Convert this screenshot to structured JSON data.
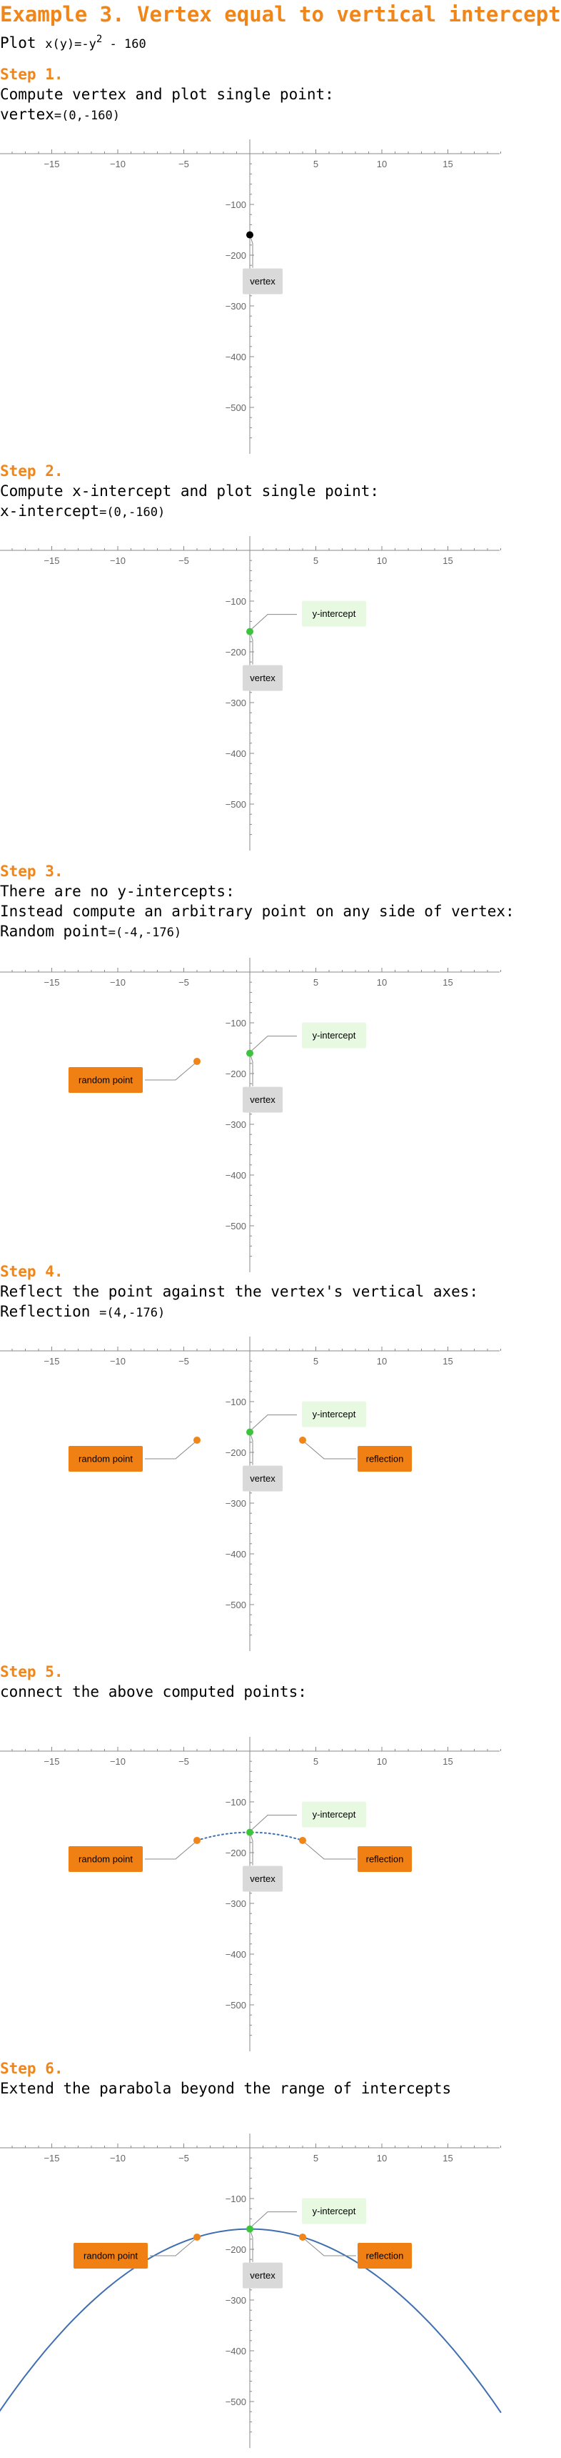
{
  "title": "Example 3. Vertex equal to vertical intercept",
  "plot_prefix": "Plot ",
  "plot_func": "x(y)=-y",
  "plot_exp": "2",
  "plot_rest": " - 160",
  "steps": [
    {
      "heading": "Step 1.",
      "lines": [
        {
          "text": "Compute vertex and plot single point:"
        },
        {
          "text": "vertex",
          "value": "=(0,-160)"
        }
      ]
    },
    {
      "heading": "Step 2.",
      "lines": [
        {
          "text": "Compute x-intercept and plot single point:"
        },
        {
          "text": "x-intercept",
          "value": "=(0,-160)"
        }
      ]
    },
    {
      "heading": "Step 3.",
      "lines": [
        {
          "text": "There are no y-intercepts:"
        },
        {
          "text": "Instead compute an arbitrary point on any side of vertex:"
        },
        {
          "text": "Random point",
          "value": "=(-4,-176)"
        }
      ]
    },
    {
      "heading": "Step 4.",
      "lines": [
        {
          "text": "Reflect the point against the vertex's vertical axes:"
        },
        {
          "text": "Reflection ",
          "value": "=(4,-176)"
        }
      ]
    },
    {
      "heading": "Step 5.",
      "lines": [
        {
          "text": "connect the above computed points:"
        }
      ]
    },
    {
      "heading": "Step 6.",
      "lines": [
        {
          "text": "Extend the parabola beyond the range of intercepts"
        }
      ]
    }
  ],
  "labels": {
    "vertex": "vertex",
    "y_intercept": "y-intercept",
    "random_point": "random point",
    "reflection": "reflection"
  },
  "colors": {
    "accent": "#f0861a",
    "vertex_point": "#000000",
    "intercept_point": "#3cc43c",
    "random_point": "#f0861a",
    "curve": "#3f6fb0",
    "label_gray_bg": "#d9d9d9",
    "label_green_bg": "#e8f9e2",
    "label_orange_bg": "#f07f14"
  },
  "chart_data": [
    {
      "type": "scatter",
      "xlim": [
        -19,
        19
      ],
      "ylim": [
        -560,
        0
      ],
      "x_ticks": [
        -15,
        -10,
        -5,
        5,
        10,
        15
      ],
      "y_ticks": [
        -100,
        -200,
        -300,
        -400,
        -500
      ],
      "grid": false,
      "points": [
        {
          "x": 0,
          "y": -160,
          "label": "vertex"
        }
      ]
    },
    {
      "type": "scatter",
      "xlim": [
        -19,
        19
      ],
      "ylim": [
        -560,
        0
      ],
      "x_ticks": [
        -15,
        -10,
        -5,
        5,
        10,
        15
      ],
      "y_ticks": [
        -100,
        -200,
        -300,
        -400,
        -500
      ],
      "grid": false,
      "points": [
        {
          "x": 0,
          "y": -160,
          "label": "y-intercept"
        },
        {
          "x": 0,
          "y": -160,
          "label": "vertex"
        }
      ]
    },
    {
      "type": "scatter",
      "xlim": [
        -19,
        19
      ],
      "ylim": [
        -560,
        0
      ],
      "x_ticks": [
        -15,
        -10,
        -5,
        5,
        10,
        15
      ],
      "y_ticks": [
        -100,
        -200,
        -300,
        -400,
        -500
      ],
      "grid": false,
      "points": [
        {
          "x": 0,
          "y": -160,
          "label": "y-intercept"
        },
        {
          "x": 0,
          "y": -160,
          "label": "vertex"
        },
        {
          "x": -4,
          "y": -176,
          "label": "random point"
        }
      ]
    },
    {
      "type": "scatter",
      "xlim": [
        -19,
        19
      ],
      "ylim": [
        -560,
        0
      ],
      "x_ticks": [
        -15,
        -10,
        -5,
        5,
        10,
        15
      ],
      "y_ticks": [
        -100,
        -200,
        -300,
        -400,
        -500
      ],
      "grid": false,
      "points": [
        {
          "x": 0,
          "y": -160,
          "label": "y-intercept"
        },
        {
          "x": 0,
          "y": -160,
          "label": "vertex"
        },
        {
          "x": -4,
          "y": -176,
          "label": "random point"
        },
        {
          "x": 4,
          "y": -176,
          "label": "reflection"
        }
      ]
    },
    {
      "type": "line",
      "xlim": [
        -19,
        19
      ],
      "ylim": [
        -560,
        0
      ],
      "x_ticks": [
        -15,
        -10,
        -5,
        5,
        10,
        15
      ],
      "y_ticks": [
        -100,
        -200,
        -300,
        -400,
        -500
      ],
      "grid": false,
      "points": [
        {
          "x": 0,
          "y": -160,
          "label": "y-intercept"
        },
        {
          "x": 0,
          "y": -160,
          "label": "vertex"
        },
        {
          "x": -4,
          "y": -176,
          "label": "random point"
        },
        {
          "x": 4,
          "y": -176,
          "label": "reflection"
        }
      ],
      "curve": {
        "x_range": [
          -4,
          4
        ],
        "style": "dotted"
      }
    },
    {
      "type": "line",
      "xlim": [
        -19,
        19
      ],
      "ylim": [
        -560,
        0
      ],
      "x_ticks": [
        -15,
        -10,
        -5,
        5,
        10,
        15
      ],
      "y_ticks": [
        -100,
        -200,
        -300,
        -400,
        -500
      ],
      "grid": false,
      "points": [
        {
          "x": 0,
          "y": -160,
          "label": "y-intercept"
        },
        {
          "x": 0,
          "y": -160,
          "label": "vertex"
        },
        {
          "x": -4,
          "y": -176,
          "label": "random point"
        },
        {
          "x": 4,
          "y": -176,
          "label": "reflection"
        }
      ],
      "curve": {
        "x_range": [
          -19,
          19
        ],
        "style": "solid"
      }
    }
  ]
}
